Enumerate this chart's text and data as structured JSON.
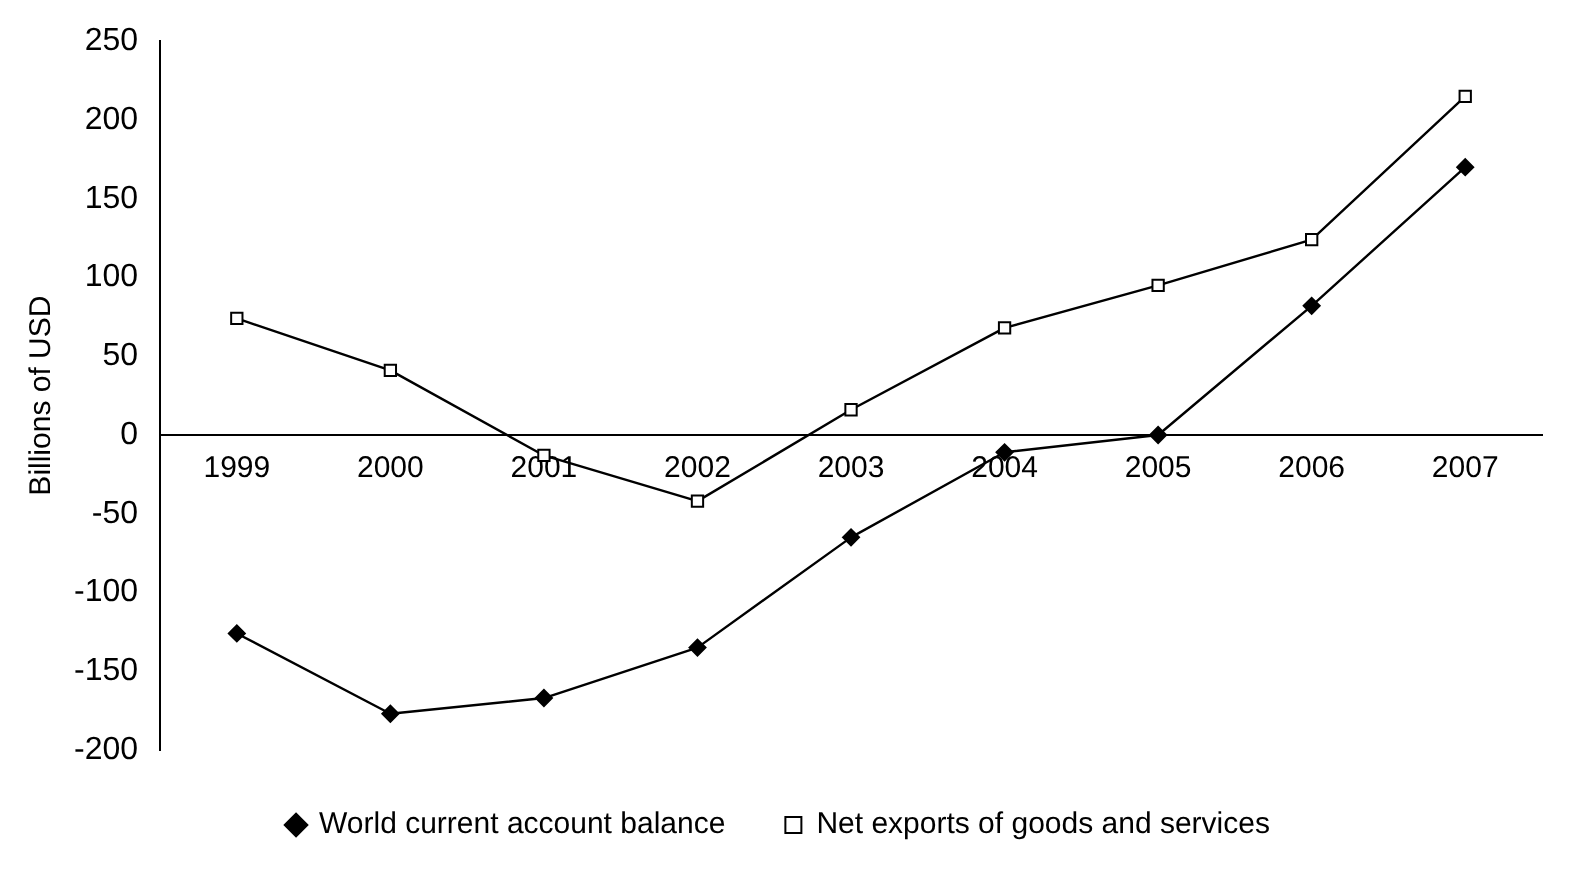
{
  "chart_data": {
    "type": "line",
    "ylabel": "Billions of USD",
    "categories": [
      "1999",
      "2000",
      "2001",
      "2002",
      "2003",
      "2004",
      "2005",
      "2006",
      "2007"
    ],
    "series": [
      {
        "name": "World current account balance",
        "color": "#000000",
        "marker": "diamond",
        "values": [
          -126,
          -177,
          -167,
          -135,
          -65,
          -11,
          0,
          82,
          170
        ]
      },
      {
        "name": "Net exports of goods and services",
        "color": "#000000",
        "marker": "square",
        "values": [
          74,
          41,
          -13,
          -42,
          16,
          68,
          95,
          124,
          215
        ]
      }
    ],
    "ylim": [
      -200,
      250
    ],
    "yticks": [
      -200,
      -150,
      -100,
      -50,
      0,
      50,
      100,
      150,
      200,
      250
    ],
    "grid": false,
    "legend": "bottom",
    "line_style": "solid"
  }
}
